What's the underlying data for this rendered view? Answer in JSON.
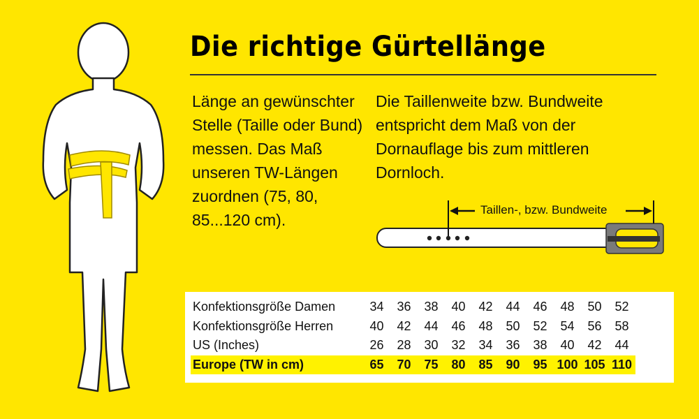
{
  "title": "Die richtige Gürtellänge",
  "left_text": "Länge an gewünschter Stelle (Taille oder Bund) messen. Das Maß unseren TW-Längen zuordnen (75, 80, 85...120 cm).",
  "right_text": "Die Taillenweite bzw. Bundweite entspricht dem Maß von der Dornauflage bis zum mittleren Dornloch.",
  "belt_label": "Taillen-, bzw. Bundweite",
  "colors": {
    "background": "#FFE600",
    "highlight": "#FFF200",
    "buckle": "#7a7a7a"
  },
  "table": {
    "rows": [
      {
        "label": "Konfektionsgröße Damen",
        "values": [
          "34",
          "36",
          "38",
          "40",
          "42",
          "44",
          "46",
          "48",
          "50",
          "52"
        ]
      },
      {
        "label": "Konfektionsgröße Herren",
        "values": [
          "40",
          "42",
          "44",
          "46",
          "48",
          "50",
          "52",
          "54",
          "56",
          "58"
        ]
      },
      {
        "label": "US (Inches)",
        "values": [
          "26",
          "28",
          "30",
          "32",
          "34",
          "36",
          "38",
          "40",
          "42",
          "44"
        ]
      },
      {
        "label": "Europe (TW in cm)",
        "values": [
          "65",
          "70",
          "75",
          "80",
          "85",
          "90",
          "95",
          "100",
          "105",
          "110"
        ]
      }
    ]
  }
}
